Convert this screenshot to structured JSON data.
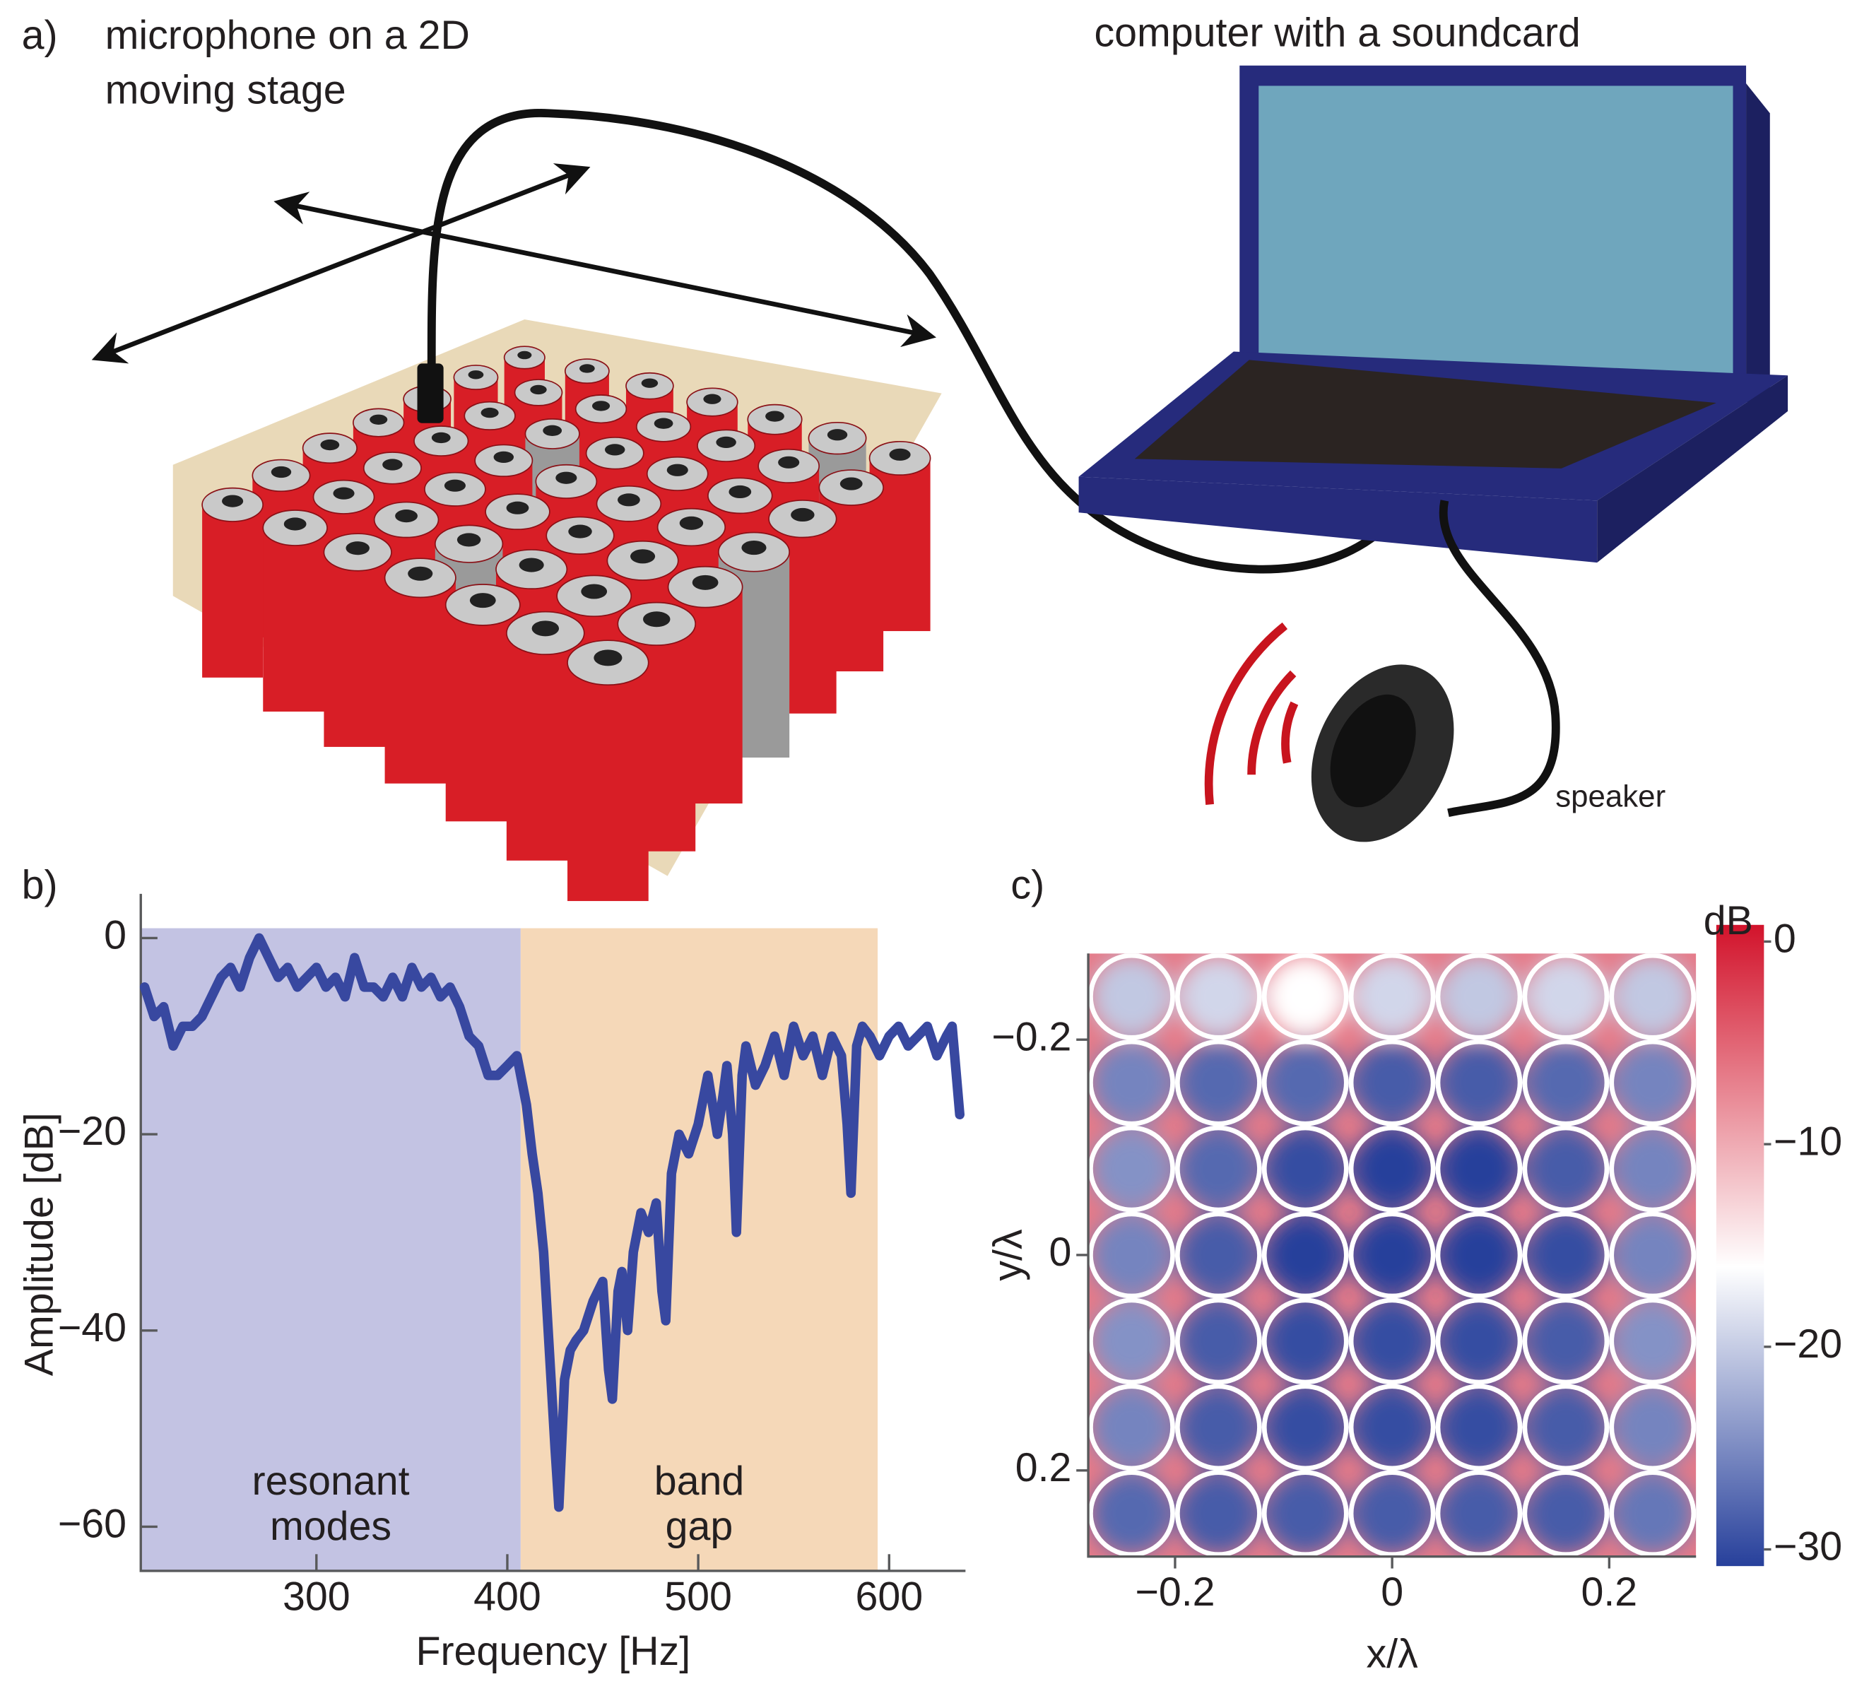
{
  "panel_a": {
    "panel_label": "a)",
    "microphone_label": [
      "microphone on a 2D",
      "moving stage"
    ],
    "computer_label": "computer with a soundcard",
    "speaker_label": "speaker"
  },
  "chart_data": [
    {
      "type": "line",
      "panel_label": "b)",
      "xlabel": "Frequency [Hz]",
      "ylabel": "Amplitude [dB]",
      "xlim": [
        208,
        640
      ],
      "ylim": [
        -64.5,
        4.5
      ],
      "xticks": [
        300,
        400,
        500,
        600
      ],
      "yticks": [
        0,
        {
          "value": -20,
          "label": "−20"
        },
        {
          "value": -40,
          "label": "−40"
        },
        {
          "value": -60,
          "label": "−60"
        }
      ],
      "color": "#3848a0",
      "regions": [
        {
          "label": [
            "resonant",
            "modes"
          ],
          "start": 208,
          "end": 407,
          "top": 1,
          "color": "#c3c3e3"
        },
        {
          "label": [
            "band",
            "gap"
          ],
          "start": 407,
          "end": 594,
          "top": 1,
          "color": "#f5d8b8"
        }
      ],
      "x": [
        210,
        215,
        220,
        225,
        230,
        235,
        240,
        245,
        250,
        255,
        260,
        265,
        270,
        275,
        280,
        285,
        290,
        295,
        300,
        305,
        310,
        315,
        320,
        325,
        330,
        335,
        340,
        345,
        350,
        355,
        360,
        365,
        370,
        375,
        380,
        385,
        390,
        395,
        400,
        405,
        410,
        413,
        416,
        419,
        422,
        425,
        427,
        430,
        433,
        436,
        440,
        445,
        450,
        453,
        455,
        458,
        460,
        463,
        466,
        470,
        474,
        478,
        481,
        483,
        486,
        490,
        495,
        500,
        505,
        510,
        513,
        515,
        518,
        520,
        523,
        525,
        530,
        535,
        540,
        545,
        550,
        555,
        560,
        565,
        570,
        575,
        578,
        580,
        583,
        586,
        590,
        595,
        600,
        605,
        610,
        615,
        620,
        625,
        630,
        633,
        637
      ],
      "values": [
        -5,
        -8,
        -7,
        -11,
        -9,
        -9,
        -8,
        -6,
        -4,
        -3,
        -5,
        -2,
        0,
        -2,
        -4,
        -3,
        -5,
        -4,
        -3,
        -5,
        -4,
        -6,
        -2,
        -5,
        -5,
        -6,
        -4,
        -6,
        -3,
        -5,
        -4,
        -6,
        -5,
        -7,
        -10,
        -11,
        -14,
        -14,
        -13,
        -12,
        -17,
        -22,
        -26,
        -32,
        -42,
        -52,
        -58,
        -45,
        -42,
        -41,
        -40,
        -37,
        -35,
        -44,
        -47,
        -36,
        -34,
        -40,
        -32,
        -28,
        -30,
        -27,
        -36,
        -39,
        -24,
        -20,
        -22,
        -19,
        -14,
        -20,
        -16,
        -13,
        -20,
        -30,
        -14,
        -11,
        -15,
        -13,
        -10,
        -14,
        -9,
        -12,
        -10,
        -14,
        -10,
        -12,
        -19,
        -26,
        -11,
        -9,
        -10,
        -12,
        -10,
        -9,
        -11,
        -10,
        -9,
        -12,
        -10,
        -9,
        -18
      ]
    },
    {
      "type": "heatmap",
      "panel_label": "c)",
      "xlabel": "x/λ",
      "ylabel": "y/λ",
      "colorbar_label": "dB",
      "xlim": [
        -0.28,
        0.28
      ],
      "ylim": [
        -0.28,
        0.28
      ],
      "xticks": [
        {
          "value": -0.2,
          "label": "−0.2"
        },
        0,
        0.2
      ],
      "yticks": [
        {
          "value": -0.2,
          "label": "−0.2"
        },
        0,
        0.2
      ],
      "clim": [
        -30,
        0
      ],
      "cticks": [
        0,
        {
          "value": -10,
          "label": "−10"
        },
        {
          "value": -20,
          "label": "−20"
        },
        {
          "value": -30,
          "label": "−30"
        }
      ],
      "colormap": [
        {
          "value": -30,
          "color": "#27409b"
        },
        {
          "value": -16,
          "color": "#ffffff"
        },
        {
          "value": 0,
          "color": "#d2132b"
        }
      ],
      "edge_value": -7,
      "values": [
        [
          -20,
          -19,
          -16,
          -19,
          -20,
          -19,
          -20
        ],
        [
          -25,
          -27,
          -27,
          -28,
          -28,
          -27,
          -25
        ],
        [
          -24,
          -27,
          -29,
          -30,
          -30,
          -28,
          -25
        ],
        [
          -25,
          -28,
          -30,
          -30,
          -30,
          -29,
          -25
        ],
        [
          -24,
          -28,
          -29,
          -29,
          -29,
          -28,
          -24
        ],
        [
          -25,
          -28,
          -29,
          -29,
          -29,
          -28,
          -25
        ],
        [
          -27,
          -28,
          -28,
          -28,
          -28,
          -28,
          -26
        ]
      ]
    }
  ]
}
